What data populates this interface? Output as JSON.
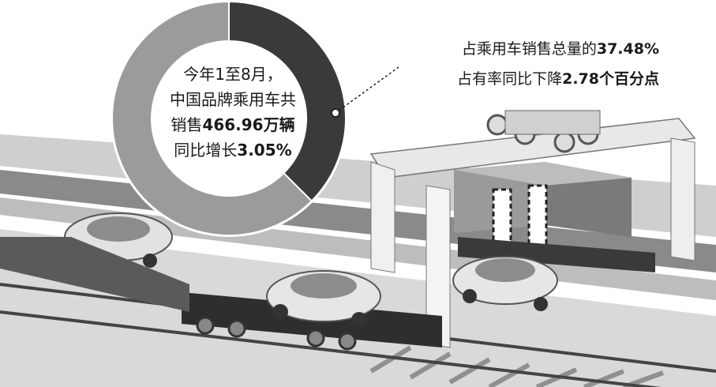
{
  "chart_data": {
    "type": "pie",
    "donut": true,
    "slices": [
      {
        "value": 37.48,
        "color": "#3a3a3a"
      },
      {
        "value": 62.52,
        "color": "#9b9b9b"
      }
    ],
    "center_text": {
      "line1": "今年1至8月，",
      "line2": "中国品牌乘用车共",
      "line3_text": "销售",
      "line3_value": "466.96万辆",
      "line4_text": "同比增长",
      "line4_value": "3.05%"
    },
    "annotation": {
      "line1_text": "占乘用车销售总量的",
      "line1_value": "37.48%",
      "line2_text": "占有率同比下降",
      "line2_value": "2.78个百分点"
    }
  }
}
